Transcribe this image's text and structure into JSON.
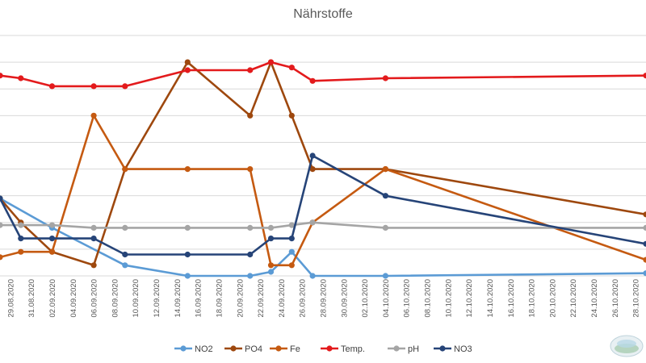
{
  "chart_data": {
    "type": "line",
    "title": "Nährstoffe",
    "x_tick_labels": [
      "29.08.2020",
      "31.08.2020",
      "02.09.2020",
      "04.09.2020",
      "06.09.2020",
      "08.09.2020",
      "10.09.2020",
      "12.09.2020",
      "14.09.2020",
      "16.09.2020",
      "18.09.2020",
      "20.09.2020",
      "22.09.2020",
      "24.09.2020",
      "26.09.2020",
      "28.09.2020",
      "30.09.2020",
      "02.10.2020",
      "04.10.2020",
      "06.10.2020",
      "08.10.2020",
      "10.10.2020",
      "12.10.2020",
      "14.10.2020",
      "16.10.2020",
      "18.10.2020",
      "20.10.2020",
      "22.10.2020",
      "24.10.2020",
      "26.10.2020",
      "28.10.2020"
    ],
    "x_range": [
      "2020-08-28",
      "2020-10-29"
    ],
    "ylim": [
      0,
      9
    ],
    "gridlines": 9,
    "legend_position": "bottom",
    "series": [
      {
        "name": "NO2",
        "color": "#5B9BD5",
        "points": [
          [
            "2020-08-28",
            2.9
          ],
          [
            "2020-09-02",
            1.8
          ],
          [
            "2020-09-09",
            0.4
          ],
          [
            "2020-09-15",
            0.0
          ],
          [
            "2020-09-21",
            0.0
          ],
          [
            "2020-09-23",
            0.15
          ],
          [
            "2020-09-25",
            0.9
          ],
          [
            "2020-09-27",
            0.0
          ],
          [
            "2020-10-04",
            0.0
          ],
          [
            "2020-10-29",
            0.1
          ]
        ]
      },
      {
        "name": "PO4",
        "color": "#9E480E",
        "points": [
          [
            "2020-08-28",
            2.9
          ],
          [
            "2020-08-30",
            2.0
          ],
          [
            "2020-09-02",
            0.9
          ],
          [
            "2020-09-06",
            0.4
          ],
          [
            "2020-09-09",
            4.0
          ],
          [
            "2020-09-15",
            8.0
          ],
          [
            "2020-09-21",
            6.0
          ],
          [
            "2020-09-23",
            8.0
          ],
          [
            "2020-09-25",
            6.0
          ],
          [
            "2020-09-27",
            4.0
          ],
          [
            "2020-10-04",
            4.0
          ],
          [
            "2020-10-29",
            2.3
          ]
        ]
      },
      {
        "name": "Fe",
        "color": "#C55A11",
        "points": [
          [
            "2020-08-28",
            0.7
          ],
          [
            "2020-08-30",
            0.9
          ],
          [
            "2020-09-02",
            0.9
          ],
          [
            "2020-09-06",
            6.0
          ],
          [
            "2020-09-09",
            4.0
          ],
          [
            "2020-09-15",
            4.0
          ],
          [
            "2020-09-21",
            4.0
          ],
          [
            "2020-09-23",
            0.4
          ],
          [
            "2020-09-25",
            0.4
          ],
          [
            "2020-09-27",
            2.0
          ],
          [
            "2020-10-04",
            4.0
          ],
          [
            "2020-10-29",
            0.6
          ]
        ]
      },
      {
        "name": "Temp.",
        "color": "#E31A1C",
        "points": [
          [
            "2020-08-28",
            7.5
          ],
          [
            "2020-08-30",
            7.4
          ],
          [
            "2020-09-02",
            7.1
          ],
          [
            "2020-09-06",
            7.1
          ],
          [
            "2020-09-09",
            7.1
          ],
          [
            "2020-09-15",
            7.7
          ],
          [
            "2020-09-21",
            7.7
          ],
          [
            "2020-09-23",
            8.0
          ],
          [
            "2020-09-25",
            7.8
          ],
          [
            "2020-09-27",
            7.3
          ],
          [
            "2020-10-04",
            7.4
          ],
          [
            "2020-10-29",
            7.5
          ]
        ]
      },
      {
        "name": "pH",
        "color": "#A5A5A5",
        "points": [
          [
            "2020-08-28",
            1.9
          ],
          [
            "2020-08-30",
            1.9
          ],
          [
            "2020-09-02",
            1.9
          ],
          [
            "2020-09-06",
            1.8
          ],
          [
            "2020-09-09",
            1.8
          ],
          [
            "2020-09-15",
            1.8
          ],
          [
            "2020-09-21",
            1.8
          ],
          [
            "2020-09-23",
            1.8
          ],
          [
            "2020-09-25",
            1.9
          ],
          [
            "2020-09-27",
            2.0
          ],
          [
            "2020-10-04",
            1.8
          ],
          [
            "2020-10-29",
            1.8
          ]
        ]
      },
      {
        "name": "NO3",
        "color": "#264478",
        "points": [
          [
            "2020-08-28",
            2.9
          ],
          [
            "2020-08-30",
            1.4
          ],
          [
            "2020-09-02",
            1.4
          ],
          [
            "2020-09-06",
            1.4
          ],
          [
            "2020-09-09",
            0.8
          ],
          [
            "2020-09-15",
            0.8
          ],
          [
            "2020-09-21",
            0.8
          ],
          [
            "2020-09-23",
            1.4
          ],
          [
            "2020-09-25",
            1.4
          ],
          [
            "2020-09-27",
            4.5
          ],
          [
            "2020-10-04",
            3.0
          ],
          [
            "2020-10-29",
            1.2
          ]
        ]
      }
    ]
  },
  "colors": {
    "grid": "#d9d9d9",
    "axis_text": "#595959"
  }
}
